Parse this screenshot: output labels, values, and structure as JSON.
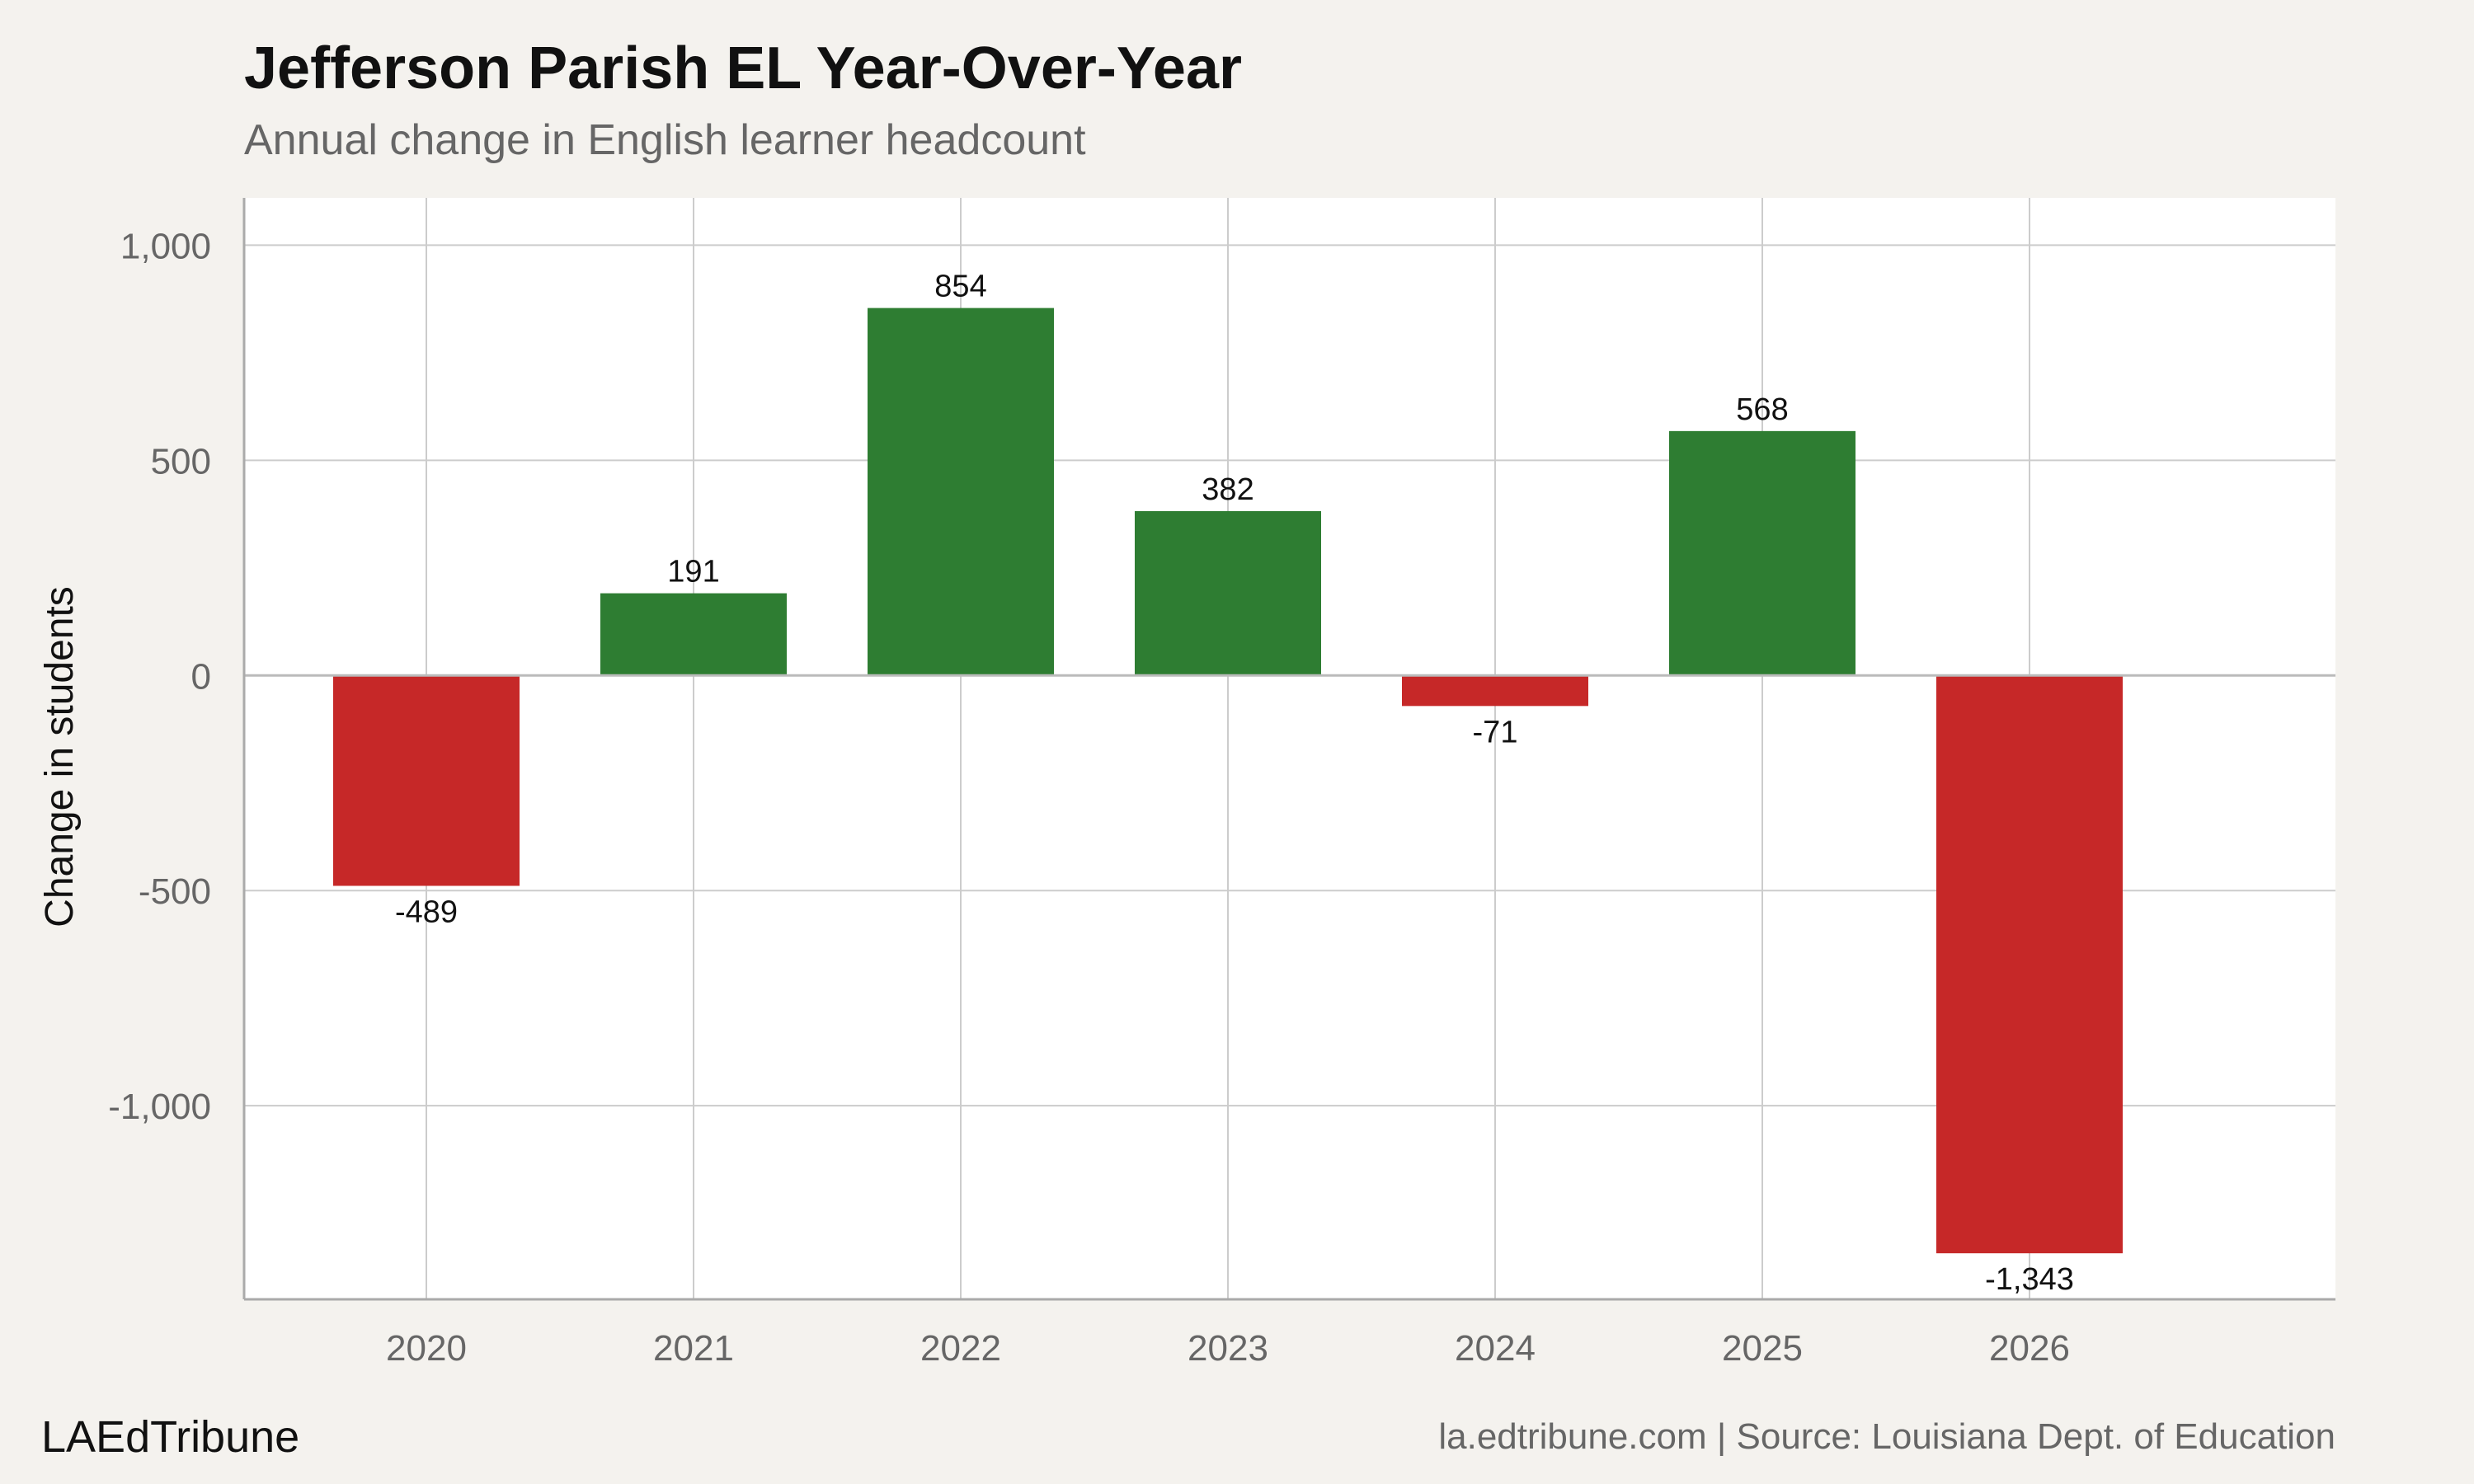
{
  "chart_data": {
    "type": "bar",
    "title": "Jefferson Parish EL Year-Over-Year",
    "subtitle": "Annual change in English learner headcount",
    "xlabel": "",
    "ylabel": "Change in students",
    "categories": [
      "2020",
      "2021",
      "2022",
      "2023",
      "2024",
      "2025",
      "2026"
    ],
    "values": [
      -489,
      191,
      854,
      382,
      -71,
      568,
      -1343
    ],
    "data_labels": [
      "-489",
      "191",
      "854",
      "382",
      "-71",
      "568",
      "-1,343"
    ],
    "ylim": [
      -1450,
      1110
    ],
    "yticks": [
      {
        "value": 1000,
        "label": "1,000"
      },
      {
        "value": 500,
        "label": "500"
      },
      {
        "value": 0,
        "label": "0"
      },
      {
        "value": -500,
        "label": "-500"
      },
      {
        "value": -1000,
        "label": "-1,000"
      }
    ],
    "grid": true,
    "legend": "none",
    "colors": {
      "positive": "#2e7d32",
      "negative": "#c62828",
      "panel": "#ffffff",
      "background": "#f4f2ee",
      "grid": "#cccccc"
    }
  },
  "footer": {
    "brand": "LAEdTribune",
    "source": "la.edtribune.com | Source: Louisiana Dept. of Education"
  }
}
